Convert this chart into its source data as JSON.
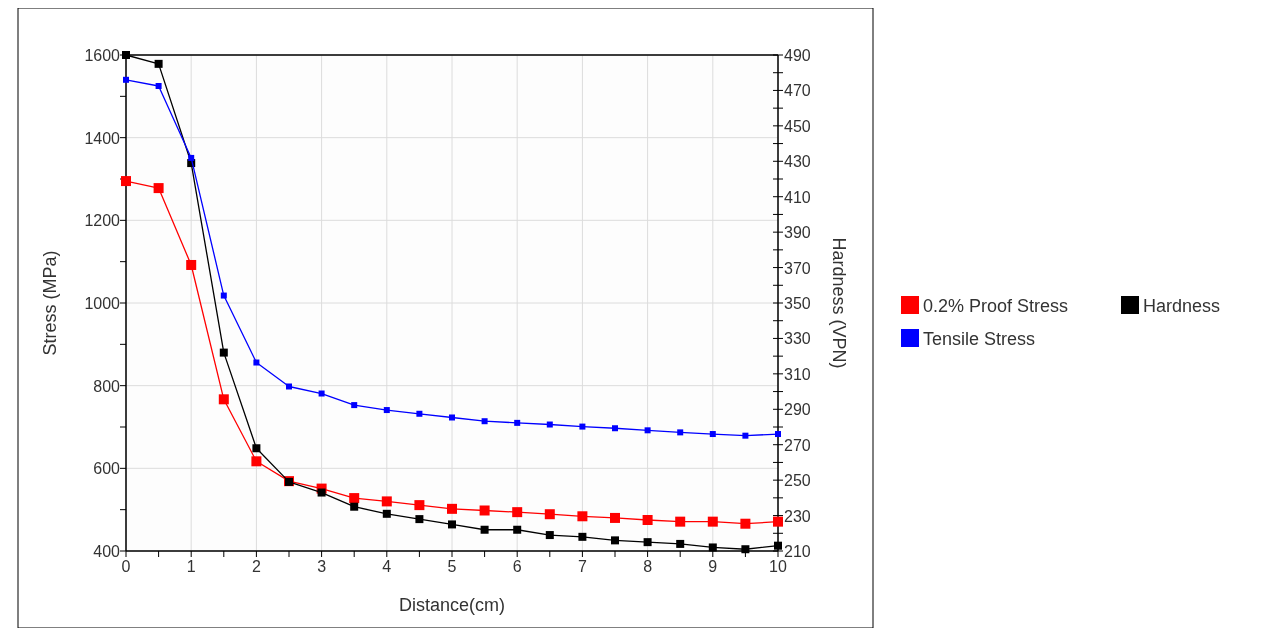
{
  "chart_data": {
    "type": "line",
    "xlabel": "Distance(cm)",
    "ylabel": "Stress (MPa)",
    "y2label": "Hardness (VPN)",
    "x": [
      0,
      0.5,
      1,
      1.5,
      2,
      2.5,
      3,
      3.5,
      4,
      4.5,
      5,
      5.5,
      6,
      6.5,
      7,
      7.5,
      8,
      8.5,
      9,
      9.5,
      10
    ],
    "xlim": [
      0,
      10
    ],
    "xticks": [
      0,
      {
        "value": 0.5,
        "label": null
      },
      1,
      {
        "value": 1.5,
        "label": null
      },
      2,
      {
        "value": 2.5,
        "label": null
      },
      3,
      {
        "value": 3.5,
        "label": null
      },
      4,
      {
        "value": 4.5,
        "label": null
      },
      5,
      {
        "value": 5.5,
        "label": null
      },
      6,
      {
        "value": 6.5,
        "label": null
      },
      7,
      {
        "value": 7.5,
        "label": null
      },
      8,
      {
        "value": 8.5,
        "label": null
      },
      9,
      {
        "value": 9.5,
        "label": null
      },
      10
    ],
    "ylim": [
      400,
      1600
    ],
    "yticks": [
      400,
      {
        "value": 500,
        "label": null
      },
      600,
      {
        "value": 700,
        "label": null
      },
      800,
      {
        "value": 900,
        "label": null
      },
      1000,
      {
        "value": 1100,
        "label": null
      },
      1200,
      {
        "value": 1300,
        "label": null
      },
      1400,
      {
        "value": 1500,
        "label": null
      },
      1600
    ],
    "y2lim": [
      210,
      490
    ],
    "y2ticks": [
      210,
      {
        "value": 220,
        "label": null
      },
      230,
      {
        "value": 240,
        "label": null
      },
      250,
      {
        "value": 260,
        "label": null
      },
      270,
      {
        "value": 280,
        "label": null
      },
      290,
      {
        "value": 300,
        "label": null
      },
      310,
      {
        "value": 320,
        "label": null
      },
      330,
      {
        "value": 340,
        "label": null
      },
      350,
      {
        "value": 360,
        "label": null
      },
      370,
      {
        "value": 380,
        "label": null
      },
      390,
      {
        "value": 400,
        "label": null
      },
      410,
      {
        "value": 420,
        "label": null
      },
      430,
      {
        "value": 440,
        "label": null
      },
      450,
      {
        "value": 460,
        "label": null
      },
      470,
      {
        "value": 480,
        "label": null
      },
      490
    ],
    "grid": true,
    "legend": "right",
    "marker": "square",
    "line_style": "solid",
    "series": [
      {
        "name": "0.2% Proof Stress",
        "color": "#ff0000",
        "values": [
          1295,
          1278,
          1092,
          767,
          617,
          569,
          551,
          528,
          520,
          511,
          502,
          498,
          494,
          489,
          484,
          480,
          475,
          471,
          471,
          466,
          471
        ]
      },
      {
        "name": "Hardness",
        "color": "#000000",
        "axis": "y2",
        "values": [
          490,
          485,
          429,
          322,
          268,
          249,
          243,
          235,
          231,
          228,
          225,
          222,
          222,
          219,
          218,
          216,
          215,
          214,
          212,
          211,
          213
        ]
      },
      {
        "name": "Tensile Stress",
        "color": "#0000ff",
        "values": [
          1540,
          1525,
          1351,
          1018,
          856,
          798,
          781,
          753,
          741,
          732,
          723,
          714,
          710,
          706,
          701,
          697,
          692,
          687,
          683,
          679,
          683
        ]
      }
    ]
  }
}
